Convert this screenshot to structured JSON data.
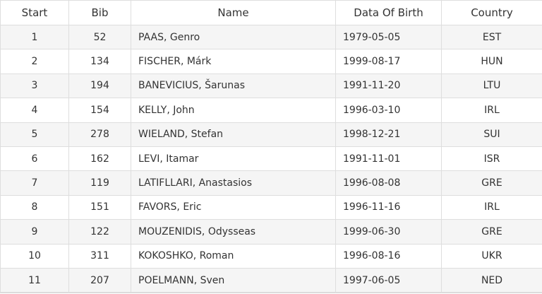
{
  "table": {
    "headers": [
      "Start",
      "Bib",
      "Name",
      "Data Of Birth",
      "Country"
    ],
    "rows": [
      [
        "1",
        "52",
        "PAAS, Genro",
        "1979-05-05",
        "EST"
      ],
      [
        "2",
        "134",
        "FISCHER, Márk",
        "1999-08-17",
        "HUN"
      ],
      [
        "3",
        "194",
        "BANEVICIUS, Šarunas",
        "1991-11-20",
        "LTU"
      ],
      [
        "4",
        "154",
        "KELLY, John",
        "1996-03-10",
        "IRL"
      ],
      [
        "5",
        "278",
        "WIELAND, Stefan",
        "1998-12-21",
        "SUI"
      ],
      [
        "6",
        "162",
        "LEVI, Itamar",
        "1991-11-01",
        "ISR"
      ],
      [
        "7",
        "119",
        "LATIFLLARI, Anastasios",
        "1996-08-08",
        "GRE"
      ],
      [
        "8",
        "151",
        "FAVORS, Eric",
        "1996-11-16",
        "IRL"
      ],
      [
        "9",
        "122",
        "MOUZENIDIS, Odysseas",
        "1999-06-30",
        "GRE"
      ],
      [
        "10",
        "311",
        "KOKOSHKO, Roman",
        "1996-08-16",
        "UKR"
      ],
      [
        "11",
        "207",
        "POELMANN, Sven",
        "1997-06-05",
        "NED"
      ]
    ]
  }
}
